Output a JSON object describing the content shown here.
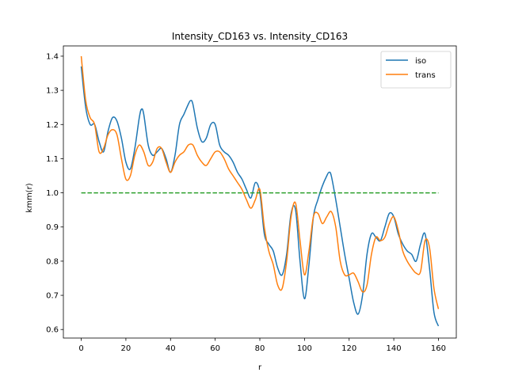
{
  "chart_data": {
    "type": "line",
    "title": "Intensity_CD163 vs. Intensity_CD163",
    "xlabel": "r",
    "ylabel": "kmm(r)",
    "xlim": [
      -8,
      168
    ],
    "ylim": [
      0.575,
      1.43
    ],
    "xticks": [
      0,
      20,
      40,
      60,
      80,
      100,
      120,
      140,
      160
    ],
    "yticks": [
      0.6,
      0.7,
      0.8,
      0.9,
      1.0,
      1.1,
      1.2,
      1.3,
      1.4
    ],
    "ytick_labels": [
      "0.6",
      "0.7",
      "0.8",
      "0.9",
      "1.0",
      "1.1",
      "1.2",
      "1.3",
      "1.4"
    ],
    "legend_position": "upper right",
    "grid": false,
    "series": [
      {
        "name": "iso",
        "color": "#1f77b4",
        "style": "solid",
        "x": [
          0,
          2,
          4,
          6,
          8,
          10,
          12,
          14,
          16,
          18,
          20,
          22,
          24,
          26,
          27,
          28,
          30,
          32,
          34,
          36,
          38,
          40,
          42,
          44,
          46,
          48,
          49,
          50,
          52,
          54,
          56,
          58,
          60,
          62,
          64,
          66,
          68,
          70,
          72,
          74,
          76,
          78,
          80,
          82,
          84,
          86,
          88,
          90,
          92,
          94,
          96,
          98,
          100,
          102,
          104,
          106,
          108,
          110,
          111,
          112,
          114,
          116,
          118,
          120,
          122,
          124,
          126,
          128,
          130,
          132,
          134,
          136,
          138,
          140,
          142,
          144,
          146,
          148,
          150,
          152,
          154,
          156,
          158,
          160
        ],
        "y": [
          1.37,
          1.25,
          1.2,
          1.2,
          1.15,
          1.12,
          1.18,
          1.22,
          1.21,
          1.16,
          1.09,
          1.07,
          1.13,
          1.22,
          1.245,
          1.23,
          1.14,
          1.11,
          1.12,
          1.13,
          1.1,
          1.06,
          1.11,
          1.2,
          1.23,
          1.26,
          1.27,
          1.26,
          1.19,
          1.15,
          1.16,
          1.2,
          1.2,
          1.14,
          1.12,
          1.11,
          1.09,
          1.06,
          1.04,
          1.01,
          0.985,
          1.03,
          1.0,
          0.88,
          0.85,
          0.83,
          0.78,
          0.76,
          0.82,
          0.94,
          0.95,
          0.8,
          0.69,
          0.79,
          0.93,
          0.98,
          1.02,
          1.05,
          1.06,
          1.05,
          0.98,
          0.9,
          0.82,
          0.75,
          0.68,
          0.645,
          0.7,
          0.82,
          0.88,
          0.87,
          0.86,
          0.9,
          0.94,
          0.93,
          0.88,
          0.85,
          0.83,
          0.82,
          0.8,
          0.85,
          0.88,
          0.78,
          0.65,
          0.61
        ]
      },
      {
        "name": "trans",
        "color": "#ff7f0e",
        "style": "solid",
        "x": [
          0,
          2,
          4,
          6,
          8,
          10,
          12,
          14,
          16,
          18,
          20,
          22,
          24,
          26,
          28,
          30,
          32,
          34,
          36,
          38,
          40,
          42,
          44,
          46,
          48,
          50,
          52,
          54,
          56,
          58,
          60,
          62,
          64,
          66,
          68,
          70,
          72,
          74,
          76,
          78,
          80,
          82,
          84,
          86,
          88,
          90,
          92,
          94,
          96,
          98,
          100,
          102,
          104,
          106,
          108,
          110,
          112,
          114,
          116,
          118,
          120,
          122,
          124,
          126,
          128,
          130,
          132,
          134,
          136,
          138,
          140,
          142,
          144,
          146,
          148,
          150,
          152,
          154,
          156,
          158,
          160
        ],
        "y": [
          1.4,
          1.27,
          1.22,
          1.2,
          1.12,
          1.13,
          1.17,
          1.185,
          1.17,
          1.1,
          1.04,
          1.05,
          1.11,
          1.14,
          1.12,
          1.08,
          1.09,
          1.13,
          1.13,
          1.09,
          1.06,
          1.09,
          1.11,
          1.12,
          1.14,
          1.14,
          1.11,
          1.09,
          1.08,
          1.1,
          1.12,
          1.12,
          1.1,
          1.07,
          1.05,
          1.03,
          1.01,
          0.98,
          0.955,
          0.98,
          1.01,
          0.9,
          0.83,
          0.79,
          0.73,
          0.72,
          0.8,
          0.93,
          0.97,
          0.86,
          0.76,
          0.83,
          0.93,
          0.94,
          0.91,
          0.93,
          0.945,
          0.9,
          0.8,
          0.76,
          0.76,
          0.765,
          0.74,
          0.71,
          0.73,
          0.82,
          0.87,
          0.86,
          0.87,
          0.91,
          0.93,
          0.89,
          0.83,
          0.8,
          0.78,
          0.765,
          0.77,
          0.86,
          0.84,
          0.72,
          0.66
        ]
      },
      {
        "name": "",
        "color": "#2ca02c",
        "style": "dashed",
        "x": [
          0,
          160
        ],
        "y": [
          1.0,
          1.0
        ]
      }
    ]
  }
}
